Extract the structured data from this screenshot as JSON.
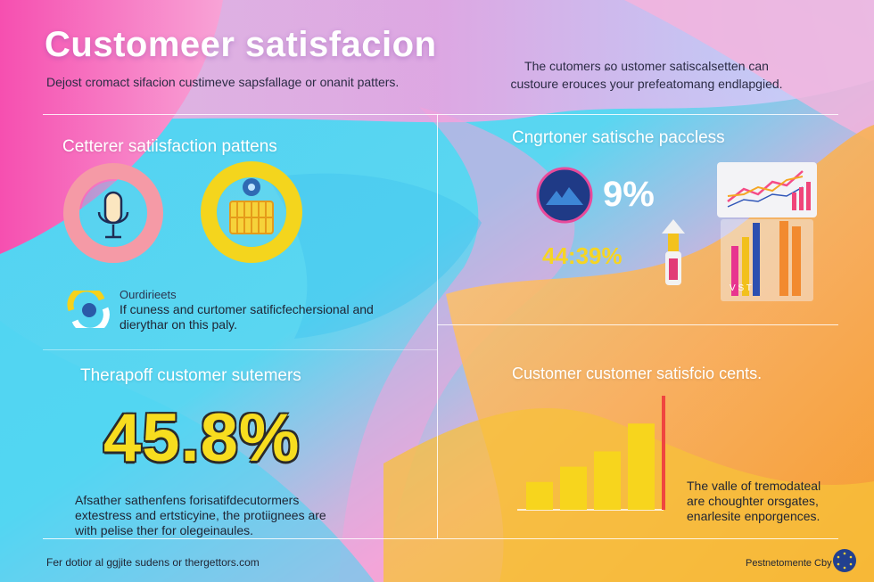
{
  "header": {
    "title": "Customeer satisfacion",
    "subtitle": "Dejost cromact sifacion custimeve sapsfallage or onanit patters.",
    "right_intro": "The cutomers ɕo ustomer satiscalsetten can custoure erouces your prefeatomang endlapgied."
  },
  "left_panel": {
    "heading": "Cetterer satiisfaction pattens",
    "icons": [
      "microphone-icon",
      "basket-icon",
      "gear-icon",
      "refresh-icon"
    ],
    "note_title": "Ourdirieets",
    "note_body": "If cuness and curtomer satificfechersional and dierythar on this paly.",
    "stat_heading": "Therapoff customer sutemers",
    "big_stat": "45.8%",
    "paragraph": "Afsather sathenfens forisatifdecutormers extestress and ertsticyine, the protiignees are with pelise ther for olegeinaules.",
    "footer": "Fer dotior al ɡgjite sudens or thergettors.com"
  },
  "right_panel": {
    "heading": "Cngrtoner satische paccless",
    "stat_one": "9%",
    "stat_two": "44:39%",
    "mini_chart_label": "V S T",
    "chart_heading": "Customer customer satisfcio cents.",
    "bar_values": [
      1.0,
      1.55,
      2.1,
      3.1,
      4.1
    ],
    "paragraph": "The valle of tremodateal are choughter orsgates, enarlesite enporgences.",
    "footer": "Pestnetomente Cby"
  },
  "colors": {
    "yellow": "#f7d51d",
    "red": "#f0453f",
    "pink": "#f34aa8",
    "cyan": "#39d3f0",
    "navy": "#22408f",
    "orange": "#f58a3c"
  }
}
